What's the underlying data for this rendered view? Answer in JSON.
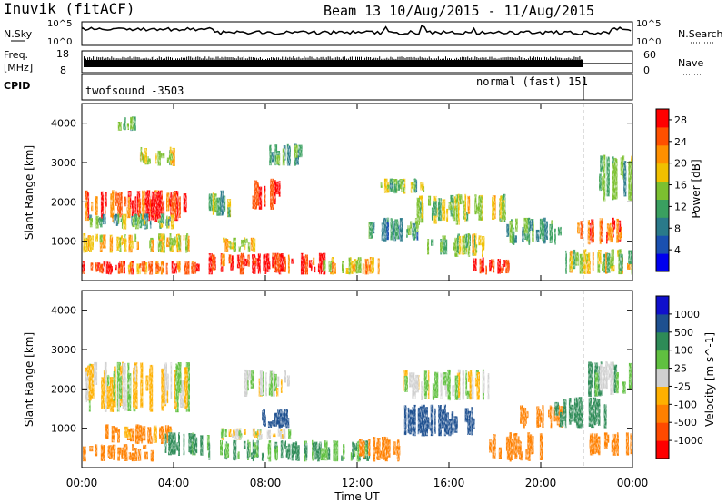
{
  "header": {
    "station": "Inuvik (fitACF)",
    "beam_date": "Beam 13 10/Aug/2015 - 11/Aug/2015"
  },
  "top_panels": {
    "nsky_label": "N.Sky",
    "nsky_ticks": [
      "10^5",
      "10^0"
    ],
    "nsearch_label": "N.Search",
    "freq_label": "Freq.",
    "freq_unit": "[MHz]",
    "freq_ticks": [
      "18",
      "8"
    ],
    "nave_ticks": [
      "60",
      "0"
    ],
    "nave_label": "Nave",
    "cpid_label": "CPID",
    "cpid_1": "twofsound -3503",
    "cpid_2": "normal (fast) 151"
  },
  "colors": {
    "power": [
      "#0000ee",
      "#1a50b0",
      "#2a7a8a",
      "#3aa060",
      "#7cc030",
      "#f0c000",
      "#ff9000",
      "#ff5000",
      "#ff0000"
    ],
    "velocity": [
      "#ff0000",
      "#ff4a00",
      "#ff8000",
      "#ffb000",
      "#d0d0d0",
      "#60c040",
      "#2e8b57",
      "#1e5090",
      "#1010cc"
    ]
  },
  "chart_data": [
    {
      "type": "heatmap",
      "title": "Power",
      "ylabel": "Slant Range [km]",
      "y_ticks": [
        "1000",
        "2000",
        "3000",
        "4000"
      ],
      "colorbar_label": "Power [dB]",
      "colorbar_ticks": [
        "4",
        "8",
        "12",
        "16",
        "20",
        "24",
        "28"
      ],
      "clim": [
        0,
        30
      ],
      "blobs": [
        {
          "t": [
            0.0,
            2.3
          ],
          "r": [
            150,
            500
          ],
          "v": 28
        },
        {
          "t": [
            2.0,
            5.0
          ],
          "r": [
            150,
            500
          ],
          "v": 24
        },
        {
          "t": [
            0.0,
            4.8
          ],
          "r": [
            700,
            1200
          ],
          "v": 18
        },
        {
          "t": [
            0.0,
            4.5
          ],
          "r": [
            1500,
            2300
          ],
          "v": 27
        },
        {
          "t": [
            0.2,
            4.0
          ],
          "r": [
            1300,
            1700
          ],
          "v": 13
        },
        {
          "t": [
            1.5,
            2.3
          ],
          "r": [
            3800,
            4200
          ],
          "v": 14
        },
        {
          "t": [
            2.5,
            4.0
          ],
          "r": [
            2900,
            3400
          ],
          "v": 17
        },
        {
          "t": [
            5.5,
            6.5
          ],
          "r": [
            1600,
            2300
          ],
          "v": 12
        },
        {
          "t": [
            5.5,
            10.5
          ],
          "r": [
            150,
            700
          ],
          "v": 28
        },
        {
          "t": [
            6.0,
            7.5
          ],
          "r": [
            700,
            1100
          ],
          "v": 17
        },
        {
          "t": [
            7.3,
            8.6
          ],
          "r": [
            1800,
            2600
          ],
          "v": 27
        },
        {
          "t": [
            8.0,
            9.5
          ],
          "r": [
            2900,
            3500
          ],
          "v": 12
        },
        {
          "t": [
            10.5,
            13.0
          ],
          "r": [
            150,
            600
          ],
          "v": 20
        },
        {
          "t": [
            12.5,
            15.0
          ],
          "r": [
            1000,
            1600
          ],
          "v": 10
        },
        {
          "t": [
            13.0,
            15.0
          ],
          "r": [
            2200,
            2600
          ],
          "v": 14
        },
        {
          "t": [
            14.5,
            16.5
          ],
          "r": [
            1400,
            2200
          ],
          "v": 15
        },
        {
          "t": [
            15.0,
            17.5
          ],
          "r": [
            600,
            1200
          ],
          "v": 16
        },
        {
          "t": [
            17.0,
            18.5
          ],
          "r": [
            150,
            600
          ],
          "v": 27
        },
        {
          "t": [
            16.5,
            18.5
          ],
          "r": [
            1500,
            2200
          ],
          "v": 16
        },
        {
          "t": [
            18.5,
            21.0
          ],
          "r": [
            900,
            1600
          ],
          "v": 12
        },
        {
          "t": [
            21.0,
            24.0
          ],
          "r": [
            150,
            800
          ],
          "v": 17
        },
        {
          "t": [
            21.5,
            23.5
          ],
          "r": [
            900,
            1600
          ],
          "v": 25
        },
        {
          "t": [
            22.5,
            24.0
          ],
          "r": [
            2000,
            3200
          ],
          "v": 14
        }
      ]
    },
    {
      "type": "heatmap",
      "title": "Velocity",
      "ylabel": "Slant Range [km]",
      "y_ticks": [
        "1000",
        "2000",
        "3000",
        "4000"
      ],
      "colorbar_label": "Velocity [m s^-1]",
      "colorbar_ticks": [
        "-1000",
        "-500",
        "-100",
        "-25",
        "25",
        "100",
        "500",
        "1000"
      ],
      "clim": [
        -1200,
        1200
      ],
      "blobs": [
        {
          "t": [
            0.0,
            4.8
          ],
          "r": [
            1400,
            2700
          ],
          "v": 0
        },
        {
          "t": [
            0.0,
            3.0
          ],
          "r": [
            150,
            600
          ],
          "v": -300
        },
        {
          "t": [
            1.0,
            4.0
          ],
          "r": [
            600,
            1100
          ],
          "v": -150
        },
        {
          "t": [
            3.5,
            5.5
          ],
          "r": [
            300,
            900
          ],
          "v": 150
        },
        {
          "t": [
            5.5,
            12.5
          ],
          "r": [
            150,
            700
          ],
          "v": 120
        },
        {
          "t": [
            6.0,
            9.0
          ],
          "r": [
            700,
            1000
          ],
          "v": 0
        },
        {
          "t": [
            7.5,
            9.0
          ],
          "r": [
            1000,
            1500
          ],
          "v": 900
        },
        {
          "t": [
            7.0,
            9.0
          ],
          "r": [
            1800,
            2500
          ],
          "v": 0
        },
        {
          "t": [
            12.0,
            14.0
          ],
          "r": [
            150,
            800
          ],
          "v": -200
        },
        {
          "t": [
            14.0,
            17.0
          ],
          "r": [
            800,
            1600
          ],
          "v": 600
        },
        {
          "t": [
            14.0,
            18.0
          ],
          "r": [
            1700,
            2500
          ],
          "v": 0
        },
        {
          "t": [
            17.5,
            20.0
          ],
          "r": [
            150,
            900
          ],
          "v": -400
        },
        {
          "t": [
            19.0,
            21.0
          ],
          "r": [
            1000,
            1600
          ],
          "v": -300
        },
        {
          "t": [
            20.5,
            23.0
          ],
          "r": [
            1000,
            1800
          ],
          "v": 300
        },
        {
          "t": [
            22.0,
            24.0
          ],
          "r": [
            1800,
            2700
          ],
          "v": 60
        },
        {
          "t": [
            22.0,
            24.0
          ],
          "r": [
            300,
            900
          ],
          "v": -300
        }
      ]
    }
  ],
  "x_axis": {
    "label": "Time UT",
    "ticks": [
      "00:00",
      "04:00",
      "08:00",
      "12:00",
      "16:00",
      "20:00",
      "00:00"
    ],
    "range_hours": [
      0,
      24
    ]
  }
}
